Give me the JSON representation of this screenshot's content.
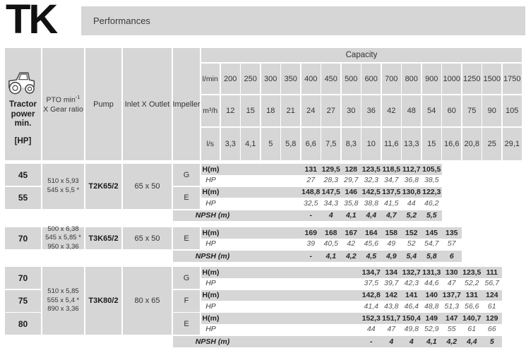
{
  "logo": "TK",
  "banner_title": "Performances",
  "colors": {
    "cell_grey": "#d6d6d6",
    "text_dark": "#1a1a1a",
    "hp_italic_grey": "#555555"
  },
  "header": {
    "tractor_icon": "tractor-icon",
    "tractor_label": "Tractor power min.",
    "tractor_unit": "[HP]",
    "pto_line1": "PTO min",
    "pto_sup": "-1",
    "pto_line2": "X Gear ratio",
    "pump_label": "Pump",
    "inlet_label": "Inlet X Outlet",
    "impeller_label": "Impeller"
  },
  "capacity": {
    "title": "Capacity",
    "rows": [
      {
        "unit": "l/min",
        "values": [
          "200",
          "250",
          "300",
          "350",
          "400",
          "450",
          "500",
          "600",
          "700",
          "800",
          "900",
          "1000",
          "1250",
          "1500",
          "1750"
        ]
      },
      {
        "unit": "m³/h",
        "values": [
          "12",
          "15",
          "18",
          "21",
          "24",
          "27",
          "30",
          "36",
          "42",
          "48",
          "54",
          "60",
          "75",
          "90",
          "105"
        ]
      },
      {
        "unit": "l/s",
        "values": [
          "3,3",
          "4,1",
          "5",
          "5,8",
          "6,6",
          "7,5",
          "8,3",
          "10",
          "11,6",
          "13,3",
          "15",
          "16,6",
          "20,8",
          "25",
          "29,1"
        ]
      }
    ]
  },
  "labels": {
    "h": "H(m)",
    "hp": "HP",
    "npsh": "NPSH (m)"
  },
  "blocks": [
    {
      "hp_rows": [
        "45",
        "55"
      ],
      "pto_lines": [
        "510 x 5,93",
        "545 x 5,5 *"
      ],
      "pump": "T2K65/2",
      "inlet": "65 x 50",
      "first_capacity_column": "400",
      "impellers": [
        {
          "letter": "G",
          "h": [
            "131",
            "129,5",
            "128",
            "123,5",
            "118,5",
            "112,7",
            "105,5"
          ],
          "hp": [
            "27",
            "28,3",
            "29,7",
            "32,3",
            "34,7",
            "36,8",
            "38,5"
          ]
        },
        {
          "letter": "E",
          "h": [
            "148,8",
            "147,5",
            "146",
            "142,5",
            "137,5",
            "130,8",
            "122,3"
          ],
          "hp": [
            "32,5",
            "34,3",
            "35,8",
            "38,8",
            "41,5",
            "44",
            "46,2"
          ]
        }
      ],
      "npsh": [
        "-",
        "4",
        "4,1",
        "4,4",
        "4,7",
        "5,2",
        "5,5"
      ]
    },
    {
      "hp_rows": [
        "70"
      ],
      "pto_lines": [
        "500 x 6,38",
        "545 x 5,85 *",
        "950 x 3,36"
      ],
      "pump": "T3K65/2",
      "inlet": "65 x 50",
      "first_capacity_column": "400",
      "impellers": [
        {
          "letter": "E",
          "h": [
            "169",
            "168",
            "167",
            "164",
            "158",
            "152",
            "145",
            "135"
          ],
          "hp": [
            "39",
            "40,5",
            "42",
            "45,6",
            "49",
            "52",
            "54,7",
            "57"
          ]
        }
      ],
      "npsh": [
        "-",
        "4,1",
        "4,2",
        "4,5",
        "4,9",
        "5,4",
        "5,8",
        "6"
      ]
    },
    {
      "hp_rows": [
        "70",
        "75",
        "80"
      ],
      "pto_lines": [
        "510 x 5,85",
        "555 x 5,4 *",
        "890 x 3,36"
      ],
      "pump": "T3K80/2",
      "inlet": "80 x 65",
      "first_capacity_column": "600",
      "impellers": [
        {
          "letter": "G",
          "h": [
            "134,7",
            "134",
            "132,7",
            "131,3",
            "130",
            "123,5",
            "111"
          ],
          "hp": [
            "37,5",
            "39,7",
            "42,3",
            "44,6",
            "47",
            "52,2",
            "56,7"
          ]
        },
        {
          "letter": "F",
          "h": [
            "142,8",
            "142",
            "141",
            "140",
            "137,7",
            "131",
            "124"
          ],
          "hp": [
            "41,4",
            "43,8",
            "46,4",
            "48,8",
            "51,3",
            "56,6",
            "61"
          ]
        },
        {
          "letter": "E",
          "h": [
            "152,3",
            "151,7",
            "150,4",
            "149",
            "147",
            "140,7",
            "129"
          ],
          "hp": [
            "44",
            "47",
            "49,8",
            "52,9",
            "55",
            "61",
            "66"
          ]
        }
      ],
      "npsh": [
        "-",
        "4",
        "4",
        "4,1",
        "4,2",
        "4,4",
        "5"
      ]
    }
  ]
}
